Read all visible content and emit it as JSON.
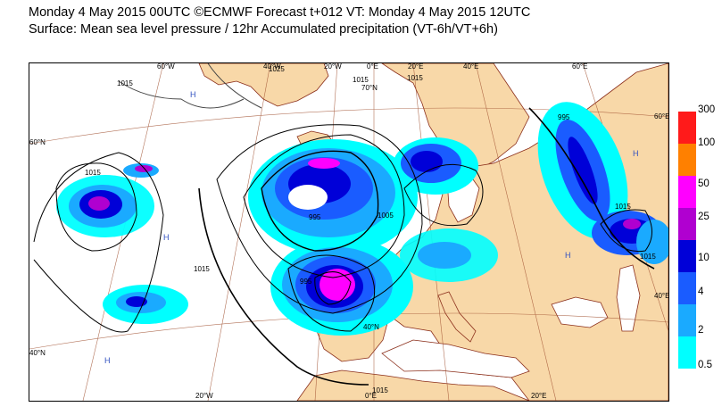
{
  "header": {
    "line1": "Monday 4 May 2015 00UTC ©ECMWF Forecast t+012 VT: Monday 4 May 2015 12UTC",
    "line2": "Surface: Mean sea level pressure / 12hr Accumulated precipitation (VT-6h/VT+6h)"
  },
  "map": {
    "top_lon_labels": [
      "60°W",
      "40°W",
      "20°W",
      "0°E",
      "20°E",
      "40°E",
      "60°E"
    ],
    "bottom_lon_labels": [
      "20°W",
      "0°E",
      "20°E"
    ],
    "left_lat_labels": [
      "60°N",
      "40°N"
    ],
    "right_lat_labels": [
      "60°E",
      "40°E"
    ],
    "inner_labels": [
      "70°N",
      "40°N"
    ],
    "isobar_labels": [
      "1015",
      "1025",
      "1015",
      "1015",
      "1015",
      "995",
      "995",
      "1005",
      "1015",
      "1015",
      "1015",
      "995",
      "1015"
    ],
    "high_markers": [
      "H",
      "H",
      "H",
      "H",
      "H"
    ],
    "colors": {
      "sea": "#ffffff",
      "land": "#f8d8a8",
      "coast": "#8b2e1a",
      "grid": "#a05030",
      "isobar": "#000000"
    }
  },
  "legend": {
    "levels": [
      "300",
      "100",
      "50",
      "25",
      "10",
      "4",
      "2",
      "0.5"
    ],
    "colors": [
      "#ff1a1a",
      "#ff8000",
      "#ff00ff",
      "#b000d0",
      "#0000d8",
      "#1a5cff",
      "#1aaaff",
      "#00ffff"
    ]
  }
}
